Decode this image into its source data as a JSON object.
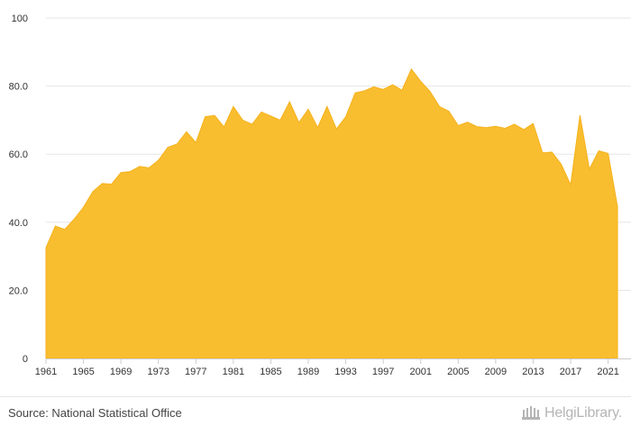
{
  "chart_data": {
    "type": "area",
    "title": "",
    "xlabel": "",
    "ylabel": "",
    "x": [
      1961,
      1962,
      1963,
      1964,
      1965,
      1966,
      1967,
      1968,
      1969,
      1970,
      1971,
      1972,
      1973,
      1974,
      1975,
      1976,
      1977,
      1978,
      1979,
      1980,
      1981,
      1982,
      1983,
      1984,
      1985,
      1986,
      1987,
      1988,
      1989,
      1990,
      1991,
      1992,
      1993,
      1994,
      1995,
      1996,
      1997,
      1998,
      1999,
      2000,
      2001,
      2002,
      2003,
      2004,
      2005,
      2006,
      2007,
      2008,
      2009,
      2010,
      2011,
      2012,
      2013,
      2014,
      2015,
      2016,
      2017,
      2018,
      2019,
      2020,
      2021,
      2022
    ],
    "values": [
      32.5,
      38.9,
      37.9,
      40.9,
      44.4,
      49.0,
      51.4,
      51.2,
      54.6,
      54.9,
      56.4,
      56.0,
      58.2,
      62.0,
      63.0,
      66.6,
      63.4,
      71.0,
      71.4,
      68.0,
      74.0,
      70.0,
      68.8,
      72.4,
      71.2,
      70.0,
      75.4,
      69.3,
      73.2,
      67.8,
      74.0,
      67.4,
      71.0,
      78.0,
      78.6,
      79.8,
      79.0,
      80.4,
      78.8,
      85.0,
      81.4,
      78.4,
      74.0,
      72.6,
      68.4,
      69.4,
      68.1,
      67.8,
      68.2,
      67.6,
      68.8,
      67.2,
      69.0,
      60.4,
      60.6,
      57.0,
      51.0,
      71.4,
      55.6,
      61.0,
      60.2,
      44.6
    ],
    "ylim": [
      0,
      100
    ],
    "yticks": [
      "0",
      "20.0",
      "40.0",
      "60.0",
      "80.0",
      "100"
    ],
    "xticks": [
      "1961",
      "1965",
      "1969",
      "1973",
      "1977",
      "1981",
      "1985",
      "1989",
      "1993",
      "1997",
      "2001",
      "2005",
      "2009",
      "2013",
      "2017",
      "2021"
    ],
    "grid": true,
    "colors": {
      "fill": "#f9bd30",
      "grid": "#e6e6e6",
      "axis": "#cccccc"
    }
  },
  "footer": {
    "source": "Source: National Statistical Office",
    "logo_text": "HelgiLibrary."
  }
}
